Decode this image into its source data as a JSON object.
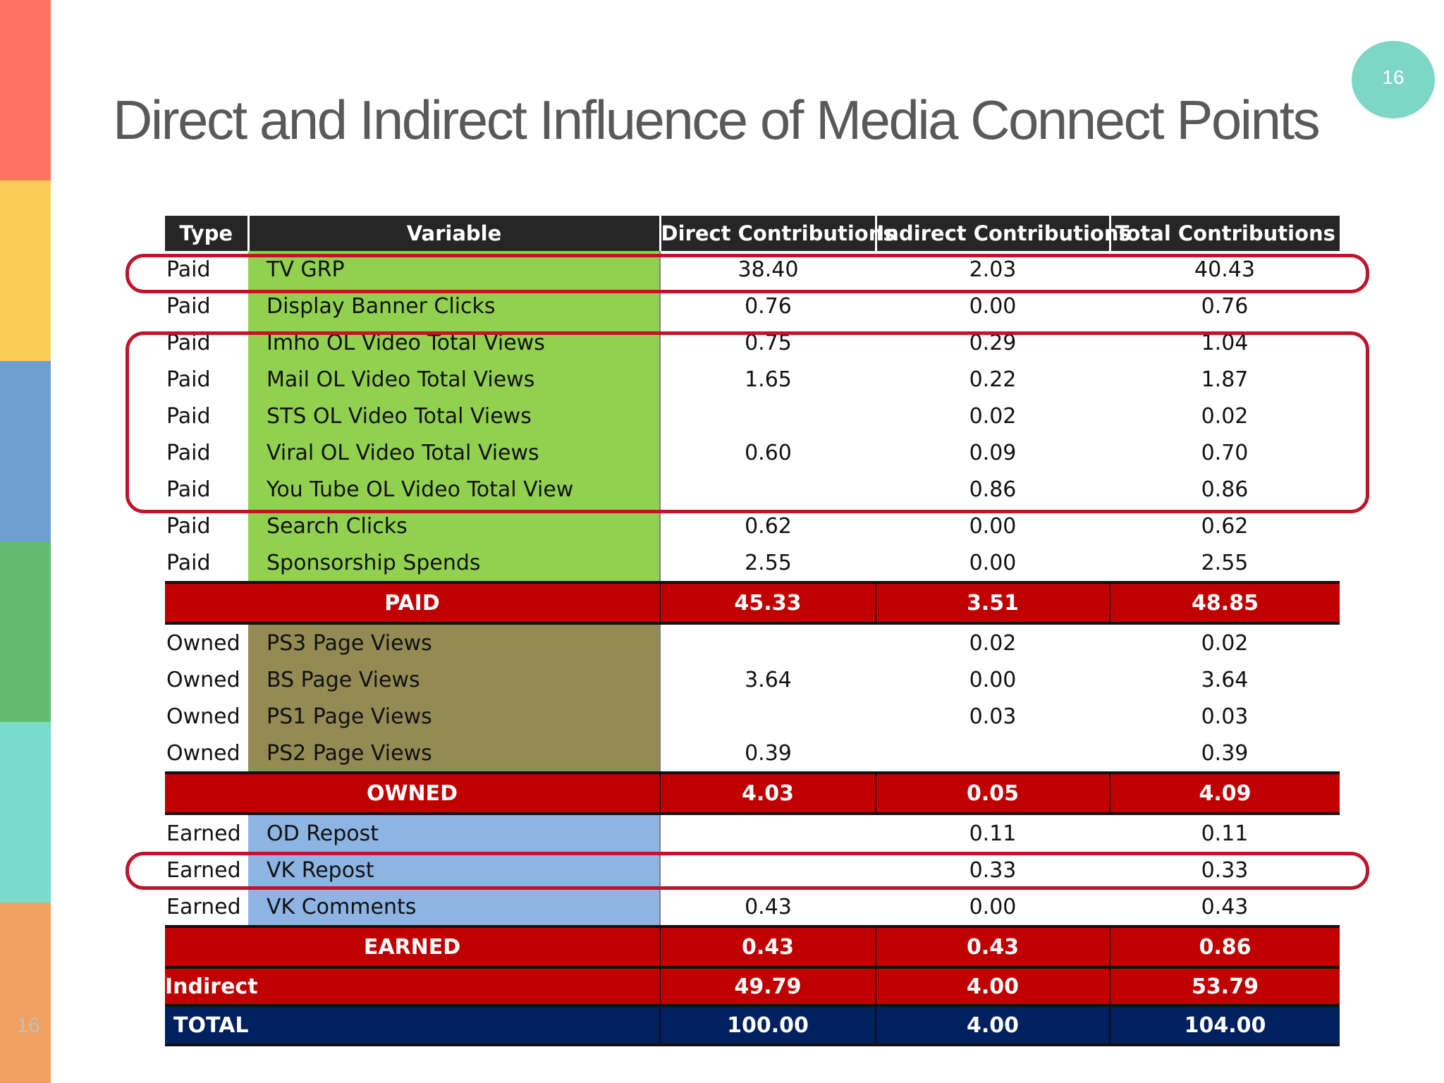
{
  "slide": {
    "number_badge": "16",
    "number_footer": "16",
    "title": "Direct and Indirect Influence of Media Connect Points"
  },
  "colors": {
    "stripes": [
      "#ff7463",
      "#fbcd58",
      "#6f9fd2",
      "#63bd70",
      "#7adbca",
      "#f0a061"
    ],
    "paid_fill": "#92d050",
    "owned_fill": "#948a54",
    "earned_fill": "#8db4e2",
    "subtotal_fill": "#c00000",
    "total_fill": "#002060",
    "highlight_outline": "#c0142a"
  },
  "table": {
    "headers": [
      "Type",
      "Variable",
      "Direct Contributions",
      "Indirect Contributions",
      "Total Contributions"
    ],
    "paid_rows": [
      {
        "type": "Paid",
        "variable": "TV GRP",
        "direct": "38.40",
        "indirect": "2.03",
        "total": "40.43"
      },
      {
        "type": "Paid",
        "variable": "Display Banner Clicks",
        "direct": "0.76",
        "indirect": "0.00",
        "total": "0.76"
      },
      {
        "type": "Paid",
        "variable": "Imho OL Video Total Views",
        "direct": "0.75",
        "indirect": "0.29",
        "total": "1.04"
      },
      {
        "type": "Paid",
        "variable": "Mail OL Video Total Views",
        "direct": "1.65",
        "indirect": "0.22",
        "total": "1.87"
      },
      {
        "type": "Paid",
        "variable": "STS OL Video Total Views",
        "direct": "",
        "indirect": "0.02",
        "total": "0.02"
      },
      {
        "type": "Paid",
        "variable": "Viral OL Video Total Views",
        "direct": "0.60",
        "indirect": "0.09",
        "total": "0.70"
      },
      {
        "type": "Paid",
        "variable": "You Tube OL Video Total View",
        "direct": "",
        "indirect": "0.86",
        "total": "0.86"
      },
      {
        "type": "Paid",
        "variable": "Search Clicks",
        "direct": "0.62",
        "indirect": "0.00",
        "total": "0.62"
      },
      {
        "type": "Paid",
        "variable": "Sponsorship Spends",
        "direct": "2.55",
        "indirect": "0.00",
        "total": "2.55"
      }
    ],
    "paid_subtotal": {
      "label": "PAID",
      "direct": "45.33",
      "indirect": "3.51",
      "total": "48.85"
    },
    "owned_rows": [
      {
        "type": "Owned",
        "variable": "PS3 Page Views",
        "direct": "",
        "indirect": "0.02",
        "total": "0.02"
      },
      {
        "type": "Owned",
        "variable": "BS Page Views",
        "direct": "3.64",
        "indirect": "0.00",
        "total": "3.64"
      },
      {
        "type": "Owned",
        "variable": "PS1 Page Views",
        "direct": "",
        "indirect": "0.03",
        "total": "0.03"
      },
      {
        "type": "Owned",
        "variable": "PS2 Page Views",
        "direct": "0.39",
        "indirect": "",
        "total": "0.39"
      }
    ],
    "owned_subtotal": {
      "label": "OWNED",
      "direct": "4.03",
      "indirect": "0.05",
      "total": "4.09"
    },
    "earned_rows": [
      {
        "type": "Earned",
        "variable": "OD Repost",
        "direct": "",
        "indirect": "0.11",
        "total": "0.11"
      },
      {
        "type": "Earned",
        "variable": "VK Repost",
        "direct": "",
        "indirect": "0.33",
        "total": "0.33"
      },
      {
        "type": "Earned",
        "variable": "VK Comments",
        "direct": "0.43",
        "indirect": "0.00",
        "total": "0.43"
      }
    ],
    "earned_subtotal": {
      "label": "EARNED",
      "direct": "0.43",
      "indirect": "0.43",
      "total": "0.86"
    },
    "indirect_row": {
      "label": "Indirect",
      "direct": "49.79",
      "indirect": "4.00",
      "total": "53.79"
    },
    "total_row": {
      "label": "TOTAL",
      "direct": "100.00",
      "indirect": "4.00",
      "total": "104.00"
    }
  }
}
